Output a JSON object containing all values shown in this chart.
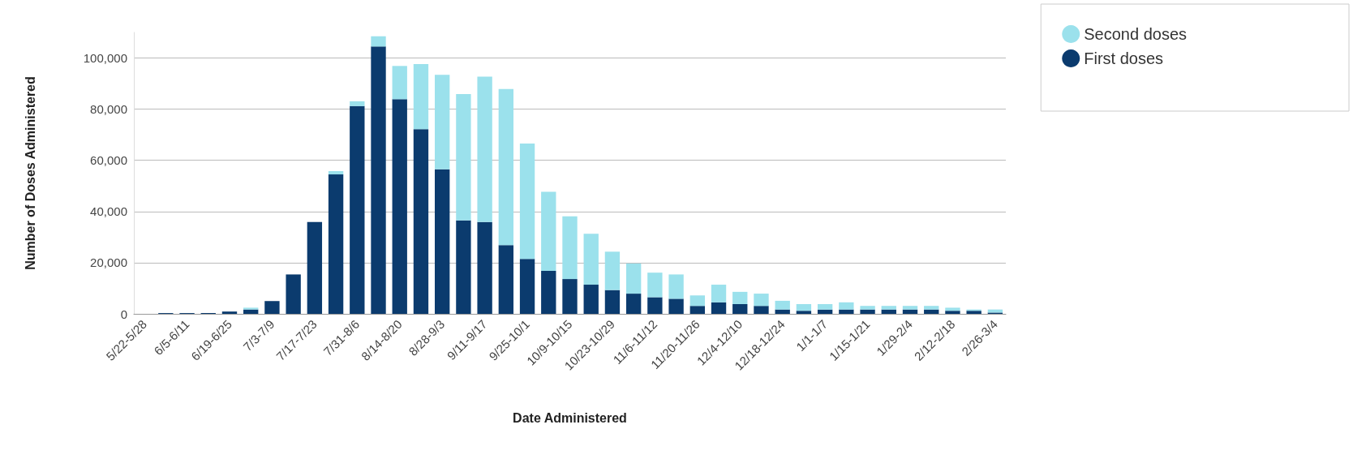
{
  "chart_data": {
    "type": "bar",
    "stacked": true,
    "xlabel": "Date Administered",
    "ylabel": "Number of Doses Administered",
    "categories": [
      "5/22-5/28",
      null,
      "6/5-6/11",
      null,
      "6/19-6/25",
      null,
      "7/3-7/9",
      null,
      "7/17-7/23",
      null,
      "7/31-8/6",
      null,
      "8/14-8/20",
      null,
      "8/28-9/3",
      null,
      "9/11-9/17",
      null,
      "9/25-10/1",
      null,
      "10/9-10/15",
      null,
      "10/23-10/29",
      null,
      "11/6-11/12",
      null,
      "11/20-11/26",
      null,
      "12/4-12/10",
      null,
      "12/18-12/24",
      null,
      "1/1-1/7",
      null,
      "1/15-1/21",
      null,
      "1/29-2/4",
      null,
      "2/12-2/18",
      null,
      "2/26-3/4"
    ],
    "series": [
      {
        "name": "First doses",
        "color": "#0b3b6e",
        "values": [
          0,
          300,
          300,
          300,
          900,
          1700,
          5000,
          15400,
          35900,
          54500,
          81200,
          104500,
          83900,
          72200,
          56500,
          36500,
          35900,
          26900,
          21500,
          16800,
          13600,
          11400,
          9300,
          7900,
          6500,
          5900,
          3100,
          4500,
          3800,
          3100,
          1700,
          1200,
          1700,
          1700,
          1700,
          1700,
          1700,
          1700,
          1200,
          1200,
          500
        ]
      },
      {
        "name": "Second doses",
        "color": "#9be1ec",
        "values": [
          0,
          0,
          0,
          0,
          0,
          700,
          0,
          0,
          0,
          1300,
          1900,
          4000,
          13000,
          25400,
          36900,
          49400,
          56800,
          61000,
          45100,
          30900,
          24500,
          19900,
          15000,
          11800,
          9600,
          9500,
          4100,
          6900,
          4800,
          4800,
          3400,
          2600,
          2100,
          2800,
          1400,
          1400,
          1400,
          1400,
          1200,
          500,
          1200
        ]
      }
    ],
    "ylim": [
      0,
      110000
    ],
    "yticks": [
      0,
      {
        "value": 20000,
        "label": "20,000"
      },
      {
        "value": 40000,
        "label": "40,000"
      },
      {
        "value": 60000,
        "label": "60,000"
      },
      {
        "value": 80000,
        "label": "80,000"
      },
      {
        "value": 100000,
        "label": "100,000"
      }
    ],
    "grid": "y",
    "legend": "top right"
  }
}
